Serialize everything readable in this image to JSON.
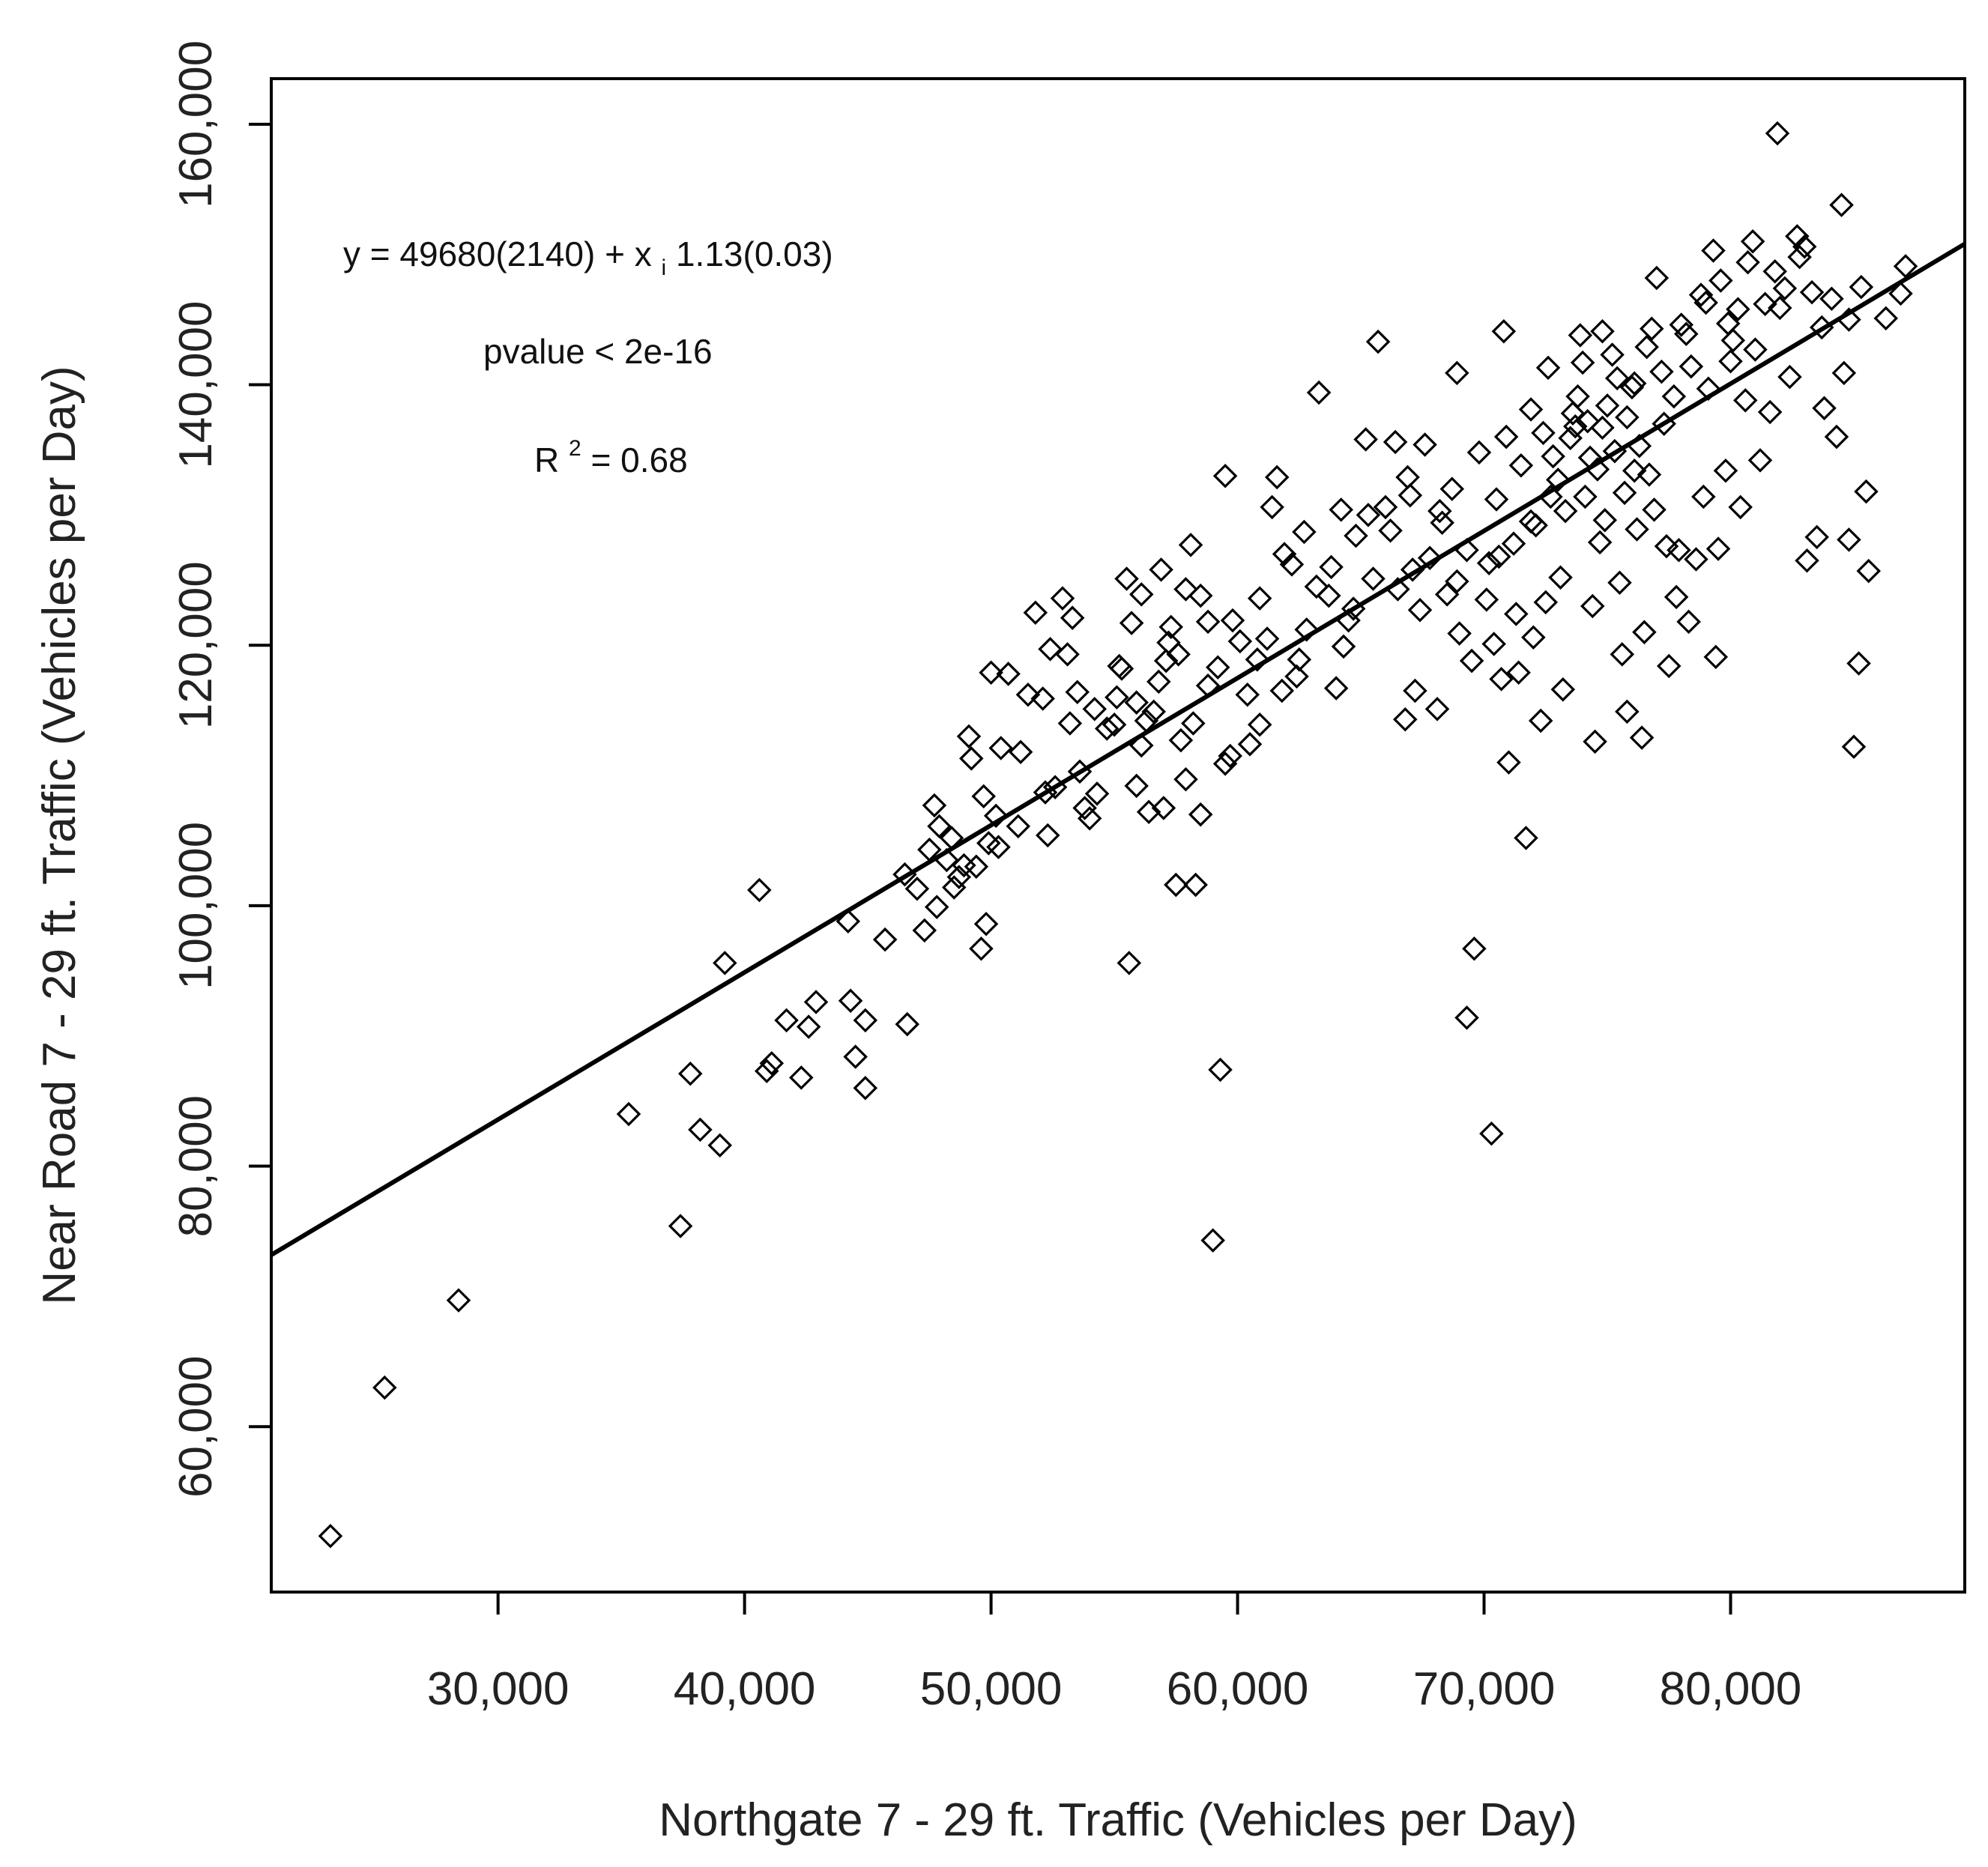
{
  "chart_data": {
    "type": "scatter",
    "title": "",
    "xlabel": "Northgate 7 - 29 ft. Traffic (Vehicles per Day)",
    "ylabel": "Near Road 7 - 29 ft. Traffic (Vehicles per Day)",
    "xlim": [
      20800,
      89500
    ],
    "ylim": [
      47300,
      163500
    ],
    "xticks": [
      {
        "value": 30000,
        "label": "30,000"
      },
      {
        "value": 40000,
        "label": "40,000"
      },
      {
        "value": 50000,
        "label": "50,000"
      },
      {
        "value": 60000,
        "label": "60,000"
      },
      {
        "value": 70000,
        "label": "70,000"
      },
      {
        "value": 80000,
        "label": "80,000"
      }
    ],
    "yticks": [
      {
        "value": 60000,
        "label": "60,000"
      },
      {
        "value": 80000,
        "label": "80,000"
      },
      {
        "value": 100000,
        "label": "100,000"
      },
      {
        "value": 120000,
        "label": "120,000"
      },
      {
        "value": 140000,
        "label": "140,000"
      },
      {
        "value": 160000,
        "label": "160,000"
      }
    ],
    "grid": false,
    "marker": "open-diamond",
    "regression_line": {
      "intercept": 49680,
      "slope": 1.13
    },
    "annotations": {
      "equation": {
        "y": "y",
        "eq1": "= 49680(2140) + x",
        "sub": "i",
        "eq2": "1.13(0.03)"
      },
      "pvalue": "pvalue < 2e-16",
      "r2": {
        "base": "R",
        "sup": "2",
        "rest": " = 0.68"
      }
    },
    "points": [
      [
        23200,
        51600
      ],
      [
        25400,
        63000
      ],
      [
        28400,
        69700
      ],
      [
        35300,
        84000
      ],
      [
        37400,
        75400
      ],
      [
        37800,
        87100
      ],
      [
        38200,
        82800
      ],
      [
        39000,
        81600
      ],
      [
        39200,
        95600
      ],
      [
        40600,
        101200
      ],
      [
        40900,
        87300
      ],
      [
        41100,
        87900
      ],
      [
        41700,
        91200
      ],
      [
        42300,
        86800
      ],
      [
        42600,
        90700
      ],
      [
        42900,
        92600
      ],
      [
        44200,
        98800
      ],
      [
        44300,
        92700
      ],
      [
        44500,
        88400
      ],
      [
        44900,
        91200
      ],
      [
        44900,
        86000
      ],
      [
        45700,
        97400
      ],
      [
        46500,
        102400
      ],
      [
        46600,
        90900
      ],
      [
        47000,
        101300
      ],
      [
        47300,
        98100
      ],
      [
        47500,
        104300
      ],
      [
        47700,
        107700
      ],
      [
        47800,
        99900
      ],
      [
        47900,
        106100
      ],
      [
        48200,
        103500
      ],
      [
        48400,
        105200
      ],
      [
        48700,
        102200
      ],
      [
        48900,
        103100
      ],
      [
        49100,
        113000
      ],
      [
        49200,
        111300
      ],
      [
        49600,
        96700
      ],
      [
        49700,
        108400
      ],
      [
        49800,
        98600
      ],
      [
        49900,
        104800
      ],
      [
        50000,
        117900
      ],
      [
        50200,
        106900
      ],
      [
        50400,
        112100
      ],
      [
        50700,
        117800
      ],
      [
        51200,
        111800
      ],
      [
        51500,
        116200
      ],
      [
        51800,
        122500
      ],
      [
        52100,
        115900
      ],
      [
        52300,
        105400
      ],
      [
        52600,
        109100
      ],
      [
        52900,
        123600
      ],
      [
        53100,
        119300
      ],
      [
        53200,
        114000
      ],
      [
        53500,
        116400
      ],
      [
        53800,
        107500
      ],
      [
        54000,
        106700
      ],
      [
        54300,
        108600
      ],
      [
        55000,
        113900
      ],
      [
        55300,
        118200
      ],
      [
        55500,
        125100
      ],
      [
        55600,
        95600
      ],
      [
        55700,
        121700
      ],
      [
        55900,
        109200
      ],
      [
        56100,
        112300
      ],
      [
        56400,
        107200
      ],
      [
        56600,
        114900
      ],
      [
        56900,
        125800
      ],
      [
        57000,
        107500
      ],
      [
        57200,
        120200
      ],
      [
        57500,
        101600
      ],
      [
        57700,
        112700
      ],
      [
        57900,
        109700
      ],
      [
        58100,
        127700
      ],
      [
        58300,
        101600
      ],
      [
        58500,
        107000
      ],
      [
        58800,
        121800
      ],
      [
        59000,
        74300
      ],
      [
        59300,
        87400
      ],
      [
        59500,
        133000
      ],
      [
        59700,
        111500
      ],
      [
        60100,
        120300
      ],
      [
        60500,
        112400
      ],
      [
        60900,
        123600
      ],
      [
        61400,
        130600
      ],
      [
        61600,
        132900
      ],
      [
        61800,
        116500
      ],
      [
        62200,
        126200
      ],
      [
        62400,
        117600
      ],
      [
        62700,
        128700
      ],
      [
        63300,
        139400
      ],
      [
        63700,
        123800
      ],
      [
        64000,
        116700
      ],
      [
        64200,
        130400
      ],
      [
        64500,
        121900
      ],
      [
        64800,
        128400
      ],
      [
        65200,
        135800
      ],
      [
        65700,
        143300
      ],
      [
        66000,
        130600
      ],
      [
        66400,
        135600
      ],
      [
        66800,
        114300
      ],
      [
        67100,
        125800
      ],
      [
        67200,
        116500
      ],
      [
        67600,
        135400
      ],
      [
        68100,
        115100
      ],
      [
        68500,
        123900
      ],
      [
        68900,
        140900
      ],
      [
        69300,
        91400
      ],
      [
        69600,
        96700
      ],
      [
        70100,
        123500
      ],
      [
        70300,
        82500
      ],
      [
        70600,
        126800
      ],
      [
        70800,
        144100
      ],
      [
        71000,
        111000
      ],
      [
        71400,
        117900
      ],
      [
        71700,
        105200
      ],
      [
        71900,
        129500
      ],
      [
        72300,
        114200
      ],
      [
        72700,
        131400
      ],
      [
        73200,
        116600
      ],
      [
        73700,
        136800
      ],
      [
        74100,
        131400
      ],
      [
        74500,
        112600
      ],
      [
        74800,
        144100
      ],
      [
        75300,
        134900
      ],
      [
        75600,
        119300
      ],
      [
        75800,
        114900
      ],
      [
        76100,
        140100
      ],
      [
        76400,
        112900
      ],
      [
        76700,
        133100
      ],
      [
        77000,
        148200
      ],
      [
        77400,
        127600
      ],
      [
        77800,
        123700
      ],
      [
        78200,
        143900
      ],
      [
        78600,
        126600
      ],
      [
        79100,
        139700
      ],
      [
        79400,
        119100
      ],
      [
        79800,
        133400
      ],
      [
        80100,
        143400
      ],
      [
        80700,
        149400
      ],
      [
        81200,
        134200
      ],
      [
        81600,
        137900
      ],
      [
        81900,
        159300
      ],
      [
        82200,
        147400
      ],
      [
        82700,
        151400
      ],
      [
        83100,
        126500
      ],
      [
        83500,
        128300
      ],
      [
        83800,
        138200
      ],
      [
        84300,
        136000
      ],
      [
        84500,
        153800
      ],
      [
        84800,
        128100
      ],
      [
        85000,
        112200
      ],
      [
        85200,
        118600
      ],
      [
        85500,
        131800
      ],
      [
        85600,
        125700
      ],
      [
        86300,
        145100
      ],
      [
        86900,
        147000
      ],
      [
        87100,
        149100
      ],
      [
        74200,
        137200
      ],
      [
        75000,
        138400
      ],
      [
        73500,
        135900
      ],
      [
        76000,
        139800
      ],
      [
        72800,
        134500
      ],
      [
        74800,
        136700
      ],
      [
        75400,
        140500
      ],
      [
        73000,
        132700
      ],
      [
        77200,
        141000
      ],
      [
        71500,
        133800
      ],
      [
        74000,
        141700
      ],
      [
        76600,
        142900
      ],
      [
        72400,
        136300
      ],
      [
        73800,
        139100
      ],
      [
        75800,
        137500
      ],
      [
        78000,
        144600
      ],
      [
        70500,
        131200
      ],
      [
        74600,
        133500
      ],
      [
        76300,
        135300
      ],
      [
        71900,
        138100
      ],
      [
        73300,
        130300
      ],
      [
        75200,
        142300
      ],
      [
        77700,
        139100
      ],
      [
        69800,
        134800
      ],
      [
        72100,
        129200
      ],
      [
        74300,
        134400
      ],
      [
        76800,
        144300
      ],
      [
        78400,
        141400
      ],
      [
        73600,
        137800
      ],
      [
        70900,
        136000
      ],
      [
        75700,
        131700
      ],
      [
        79000,
        146300
      ],
      [
        72600,
        141300
      ],
      [
        74900,
        129600
      ],
      [
        77300,
        137000
      ],
      [
        71200,
        127800
      ],
      [
        73900,
        143800
      ],
      [
        76100,
        133400
      ],
      [
        80000,
        141800
      ],
      [
        68700,
        132000
      ],
      [
        79600,
        148000
      ],
      [
        81400,
        146200
      ],
      [
        82800,
        149800
      ],
      [
        80300,
        145800
      ],
      [
        83300,
        147100
      ],
      [
        84100,
        146600
      ],
      [
        81000,
        142700
      ],
      [
        82400,
        140600
      ],
      [
        79300,
        150300
      ],
      [
        83700,
        144400
      ],
      [
        80600,
        138800
      ],
      [
        81800,
        148700
      ],
      [
        84600,
        140900
      ],
      [
        83000,
        150600
      ],
      [
        79900,
        144700
      ],
      [
        85300,
        147500
      ],
      [
        82000,
        145900
      ],
      [
        84800,
        145000
      ],
      [
        78800,
        146900
      ],
      [
        80900,
        151000
      ],
      [
        66500,
        124300
      ],
      [
        67800,
        126700
      ],
      [
        68300,
        129400
      ],
      [
        69300,
        127300
      ],
      [
        67400,
        122700
      ],
      [
        68900,
        124900
      ],
      [
        70200,
        126300
      ],
      [
        66200,
        128800
      ],
      [
        65500,
        125100
      ],
      [
        67000,
        131500
      ],
      [
        64700,
        122800
      ],
      [
        63200,
        124500
      ],
      [
        62800,
        121200
      ],
      [
        61900,
        127000
      ],
      [
        60800,
        118900
      ],
      [
        59800,
        121900
      ],
      [
        58800,
        116900
      ],
      [
        57600,
        119300
      ],
      [
        56800,
        117200
      ],
      [
        55900,
        115600
      ],
      [
        54700,
        113600
      ],
      [
        53600,
        110300
      ],
      [
        52200,
        108700
      ],
      [
        51100,
        106100
      ],
      [
        50300,
        104500
      ],
      [
        49400,
        103000
      ],
      [
        48500,
        101400
      ],
      [
        55200,
        118400
      ],
      [
        56300,
        114200
      ],
      [
        57300,
        121400
      ],
      [
        58500,
        123800
      ],
      [
        59200,
        118300
      ],
      [
        60400,
        116200
      ],
      [
        61200,
        120500
      ],
      [
        62500,
        118900
      ],
      [
        63800,
        126000
      ],
      [
        64300,
        119900
      ],
      [
        65300,
        130000
      ],
      [
        66900,
        132900
      ],
      [
        68200,
        130300
      ],
      [
        69500,
        118800
      ],
      [
        70400,
        120100
      ],
      [
        71300,
        122400
      ],
      [
        72000,
        120600
      ],
      [
        73100,
        125200
      ],
      [
        74400,
        123000
      ],
      [
        75500,
        124800
      ],
      [
        76500,
        121000
      ],
      [
        77500,
        118400
      ],
      [
        78300,
        121800
      ],
      [
        69000,
        120900
      ],
      [
        70700,
        117400
      ],
      [
        72500,
        123300
      ],
      [
        74700,
        127900
      ],
      [
        76200,
        128900
      ],
      [
        77900,
        127300
      ],
      [
        79500,
        127400
      ],
      [
        80400,
        130600
      ],
      [
        78900,
        131400
      ],
      [
        76900,
        130400
      ],
      [
        52400,
        119700
      ],
      [
        53300,
        122100
      ],
      [
        54200,
        115100
      ],
      [
        55100,
        116000
      ],
      [
        56100,
        123900
      ],
      [
        57100,
        118800
      ],
      [
        58200,
        114000
      ],
      [
        59500,
        110900
      ],
      [
        60900,
        113900
      ],
      [
        57900,
        124300
      ]
    ]
  }
}
